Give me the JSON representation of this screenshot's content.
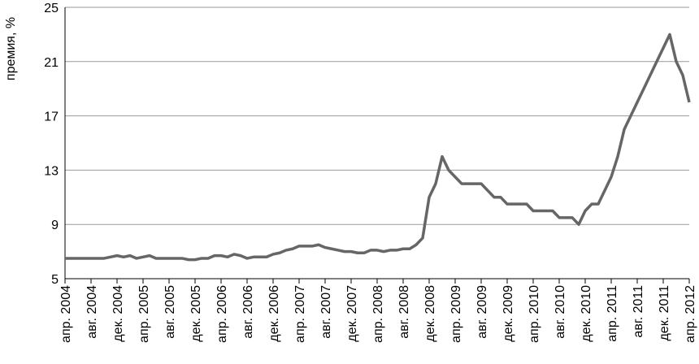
{
  "chart_data": {
    "type": "line",
    "y_label": "премия, %",
    "categories": [
      "апр. 2004",
      null,
      null,
      null,
      "авг. 2004",
      null,
      null,
      null,
      "дек. 2004",
      null,
      null,
      null,
      "апр. 2005",
      null,
      null,
      null,
      "авг. 2005",
      null,
      null,
      null,
      "дек. 2005",
      null,
      null,
      null,
      "апр. 2006",
      null,
      null,
      null,
      "авг. 2006",
      null,
      null,
      null,
      "дек. 2006",
      null,
      null,
      null,
      "апр. 2007",
      null,
      null,
      null,
      "авг. 2007",
      null,
      null,
      null,
      "дек. 2007",
      null,
      null,
      null,
      "апр. 2008",
      null,
      null,
      null,
      "авг. 2008",
      null,
      null,
      null,
      "дек. 2008",
      null,
      null,
      null,
      "апр. 2009",
      null,
      null,
      null,
      "авг. 2009",
      null,
      null,
      null,
      "дек. 2009",
      null,
      null,
      null,
      "апр. 2010",
      null,
      null,
      null,
      "авг. 2010",
      null,
      null,
      null,
      "дек. 2010",
      null,
      null,
      null,
      "апр. 2011",
      null,
      null,
      null,
      "авг. 2011",
      null,
      null,
      null,
      "дек. 2011",
      null,
      null,
      null,
      "апр. 2012"
    ],
    "values": [
      6.5,
      6.5,
      6.5,
      6.5,
      6.5,
      6.5,
      6.5,
      6.6,
      6.7,
      6.6,
      6.7,
      6.5,
      6.6,
      6.7,
      6.5,
      6.5,
      6.5,
      6.5,
      6.5,
      6.4,
      6.4,
      6.5,
      6.5,
      6.7,
      6.7,
      6.6,
      6.8,
      6.7,
      6.5,
      6.6,
      6.6,
      6.6,
      6.8,
      6.9,
      7.1,
      7.2,
      7.4,
      7.4,
      7.4,
      7.5,
      7.3,
      7.2,
      7.1,
      7.0,
      7.0,
      6.9,
      6.9,
      7.1,
      7.1,
      7.0,
      7.1,
      7.1,
      7.2,
      7.2,
      7.5,
      8.0,
      11.0,
      12.0,
      14.0,
      13.0,
      12.5,
      12.0,
      12.0,
      12.0,
      12.0,
      11.5,
      11.0,
      11.0,
      10.5,
      10.5,
      10.5,
      10.5,
      10.0,
      10.0,
      10.0,
      10.0,
      9.5,
      9.5,
      9.5,
      9.0,
      10.0,
      10.5,
      10.5,
      11.5,
      12.5,
      14.0,
      16.0,
      17.0,
      18.0,
      19.0,
      20.0,
      21.0,
      22.0,
      23.0,
      21.0,
      20.0,
      18.0
    ],
    "color": "#666666",
    "ylim": [
      5,
      25
    ],
    "yticks": [
      5,
      9,
      13,
      17,
      21,
      25
    ],
    "grid": true
  }
}
